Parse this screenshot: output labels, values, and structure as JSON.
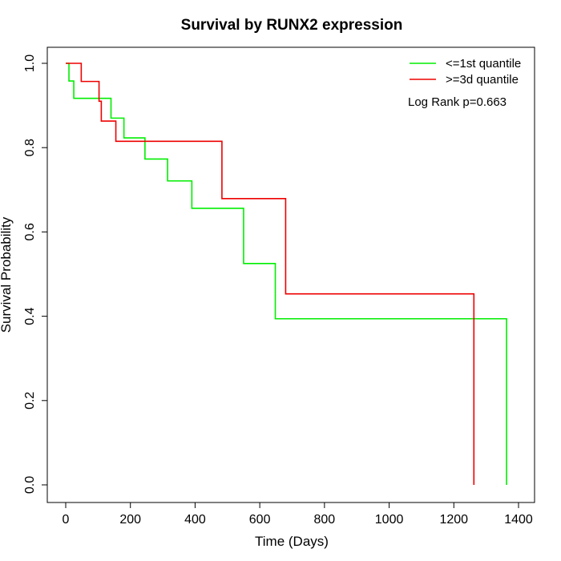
{
  "chart_data": {
    "type": "line",
    "title": "Survival by RUNX2 expression",
    "xlabel": "Time (Days)",
    "ylabel": "Survival Probability",
    "xlim": [
      0,
      1400
    ],
    "ylim": [
      0,
      1.0
    ],
    "x_ticks": [
      0,
      200,
      400,
      600,
      800,
      1000,
      1200,
      1400
    ],
    "y_ticks": [
      0.0,
      0.2,
      0.4,
      0.6,
      0.8,
      1.0
    ],
    "x_tick_labels": [
      "0",
      "200",
      "400",
      "600",
      "800",
      "1000",
      "1200",
      "1400"
    ],
    "y_tick_labels": [
      "0.0",
      "0.2",
      "0.4",
      "0.6",
      "0.8",
      "1.0"
    ],
    "grid": false,
    "legend_position": "top-right",
    "annotation": "Log Rank p=0.663",
    "series": [
      {
        "name": "<=1st quantile",
        "color": "#00ee00",
        "step_x": [
          0,
          10,
          25,
          140,
          180,
          245,
          315,
          390,
          550,
          648,
          1363
        ],
        "step_y": [
          1.0,
          0.958,
          0.917,
          0.87,
          0.823,
          0.773,
          0.721,
          0.656,
          0.525,
          0.394,
          0.0
        ]
      },
      {
        "name": ">=3d quantile",
        "color": "#ee0000",
        "step_x": [
          0,
          48,
          103,
          110,
          155,
          483,
          680,
          1262
        ],
        "step_y": [
          1.0,
          0.957,
          0.91,
          0.863,
          0.815,
          0.679,
          0.453,
          0.0
        ]
      }
    ]
  }
}
